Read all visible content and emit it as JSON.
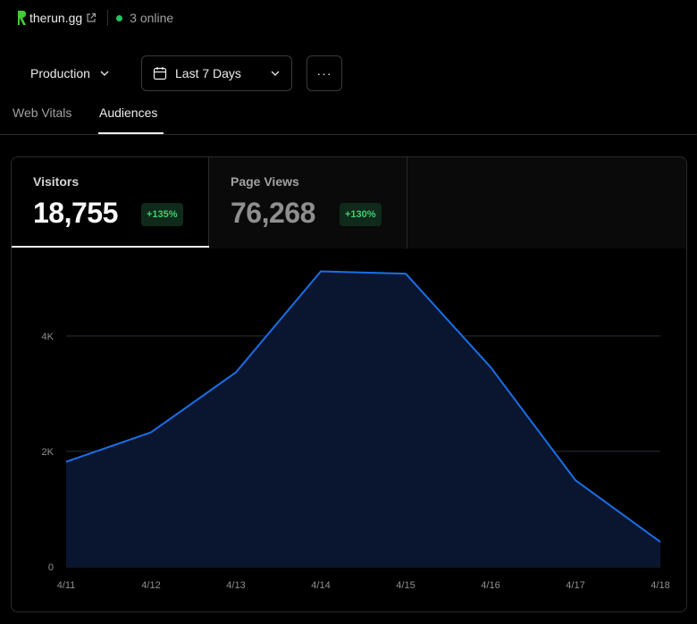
{
  "header": {
    "site": "therun.gg",
    "online": "3 online"
  },
  "controls": {
    "environment": "Production",
    "range": "Last 7 Days",
    "more": "···"
  },
  "tabs": [
    {
      "label": "Web Vitals"
    },
    {
      "label": "Audiences"
    }
  ],
  "metrics": [
    {
      "label": "Visitors",
      "value": "18,755",
      "change": "+135%"
    },
    {
      "label": "Page Views",
      "value": "76,268",
      "change": "+130%"
    }
  ],
  "chart_data": {
    "type": "area",
    "x": [
      "4/11",
      "4/12",
      "4/13",
      "4/14",
      "4/15",
      "4/16",
      "4/17",
      "4/18"
    ],
    "series": [
      {
        "values": [
          1820,
          2330,
          3370,
          5120,
          5080,
          3460,
          1500,
          430
        ]
      }
    ],
    "ylim": [
      0,
      5500
    ],
    "y_ticks": [
      0,
      2000,
      4000
    ],
    "y_tick_labels": [
      "0",
      "2K",
      "4K"
    ],
    "grid": true,
    "colors": {
      "line": "#1a6ee6",
      "fill": "#0a1630"
    }
  }
}
